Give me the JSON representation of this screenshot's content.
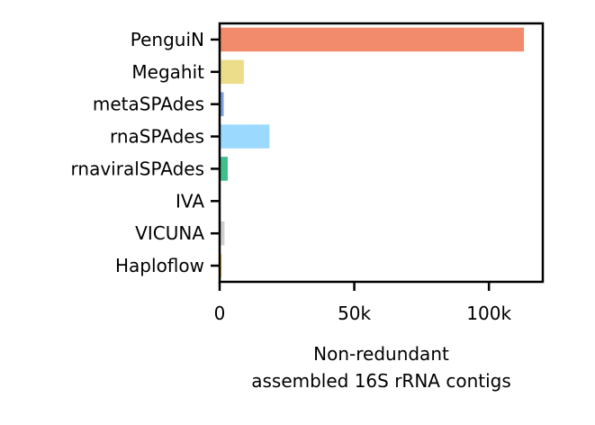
{
  "chart_data": {
    "type": "bar",
    "orientation": "horizontal",
    "categories": [
      "PenguiN",
      "Megahit",
      "metaSPAdes",
      "rnaSPAdes",
      "rnaviralSPAdes",
      "IVA",
      "VICUNA",
      "Haploflow"
    ],
    "values": [
      113000,
      9000,
      1500,
      18500,
      3000,
      100,
      1800,
      700
    ],
    "colors": [
      "#f28b6b",
      "#ecdd8a",
      "#7d9fe0",
      "#9bd9ff",
      "#3fbf8c",
      "#000000",
      "#d0d0d0",
      "#e8c040"
    ],
    "xlabel": [
      "Non-redundant",
      "assembled 16S rRNA contigs"
    ],
    "xlim": [
      0,
      120000
    ],
    "xticks": [
      0,
      50000,
      100000
    ],
    "xtick_labels": [
      "0",
      "50k",
      "100k"
    ],
    "grid": false,
    "legend": "none"
  }
}
